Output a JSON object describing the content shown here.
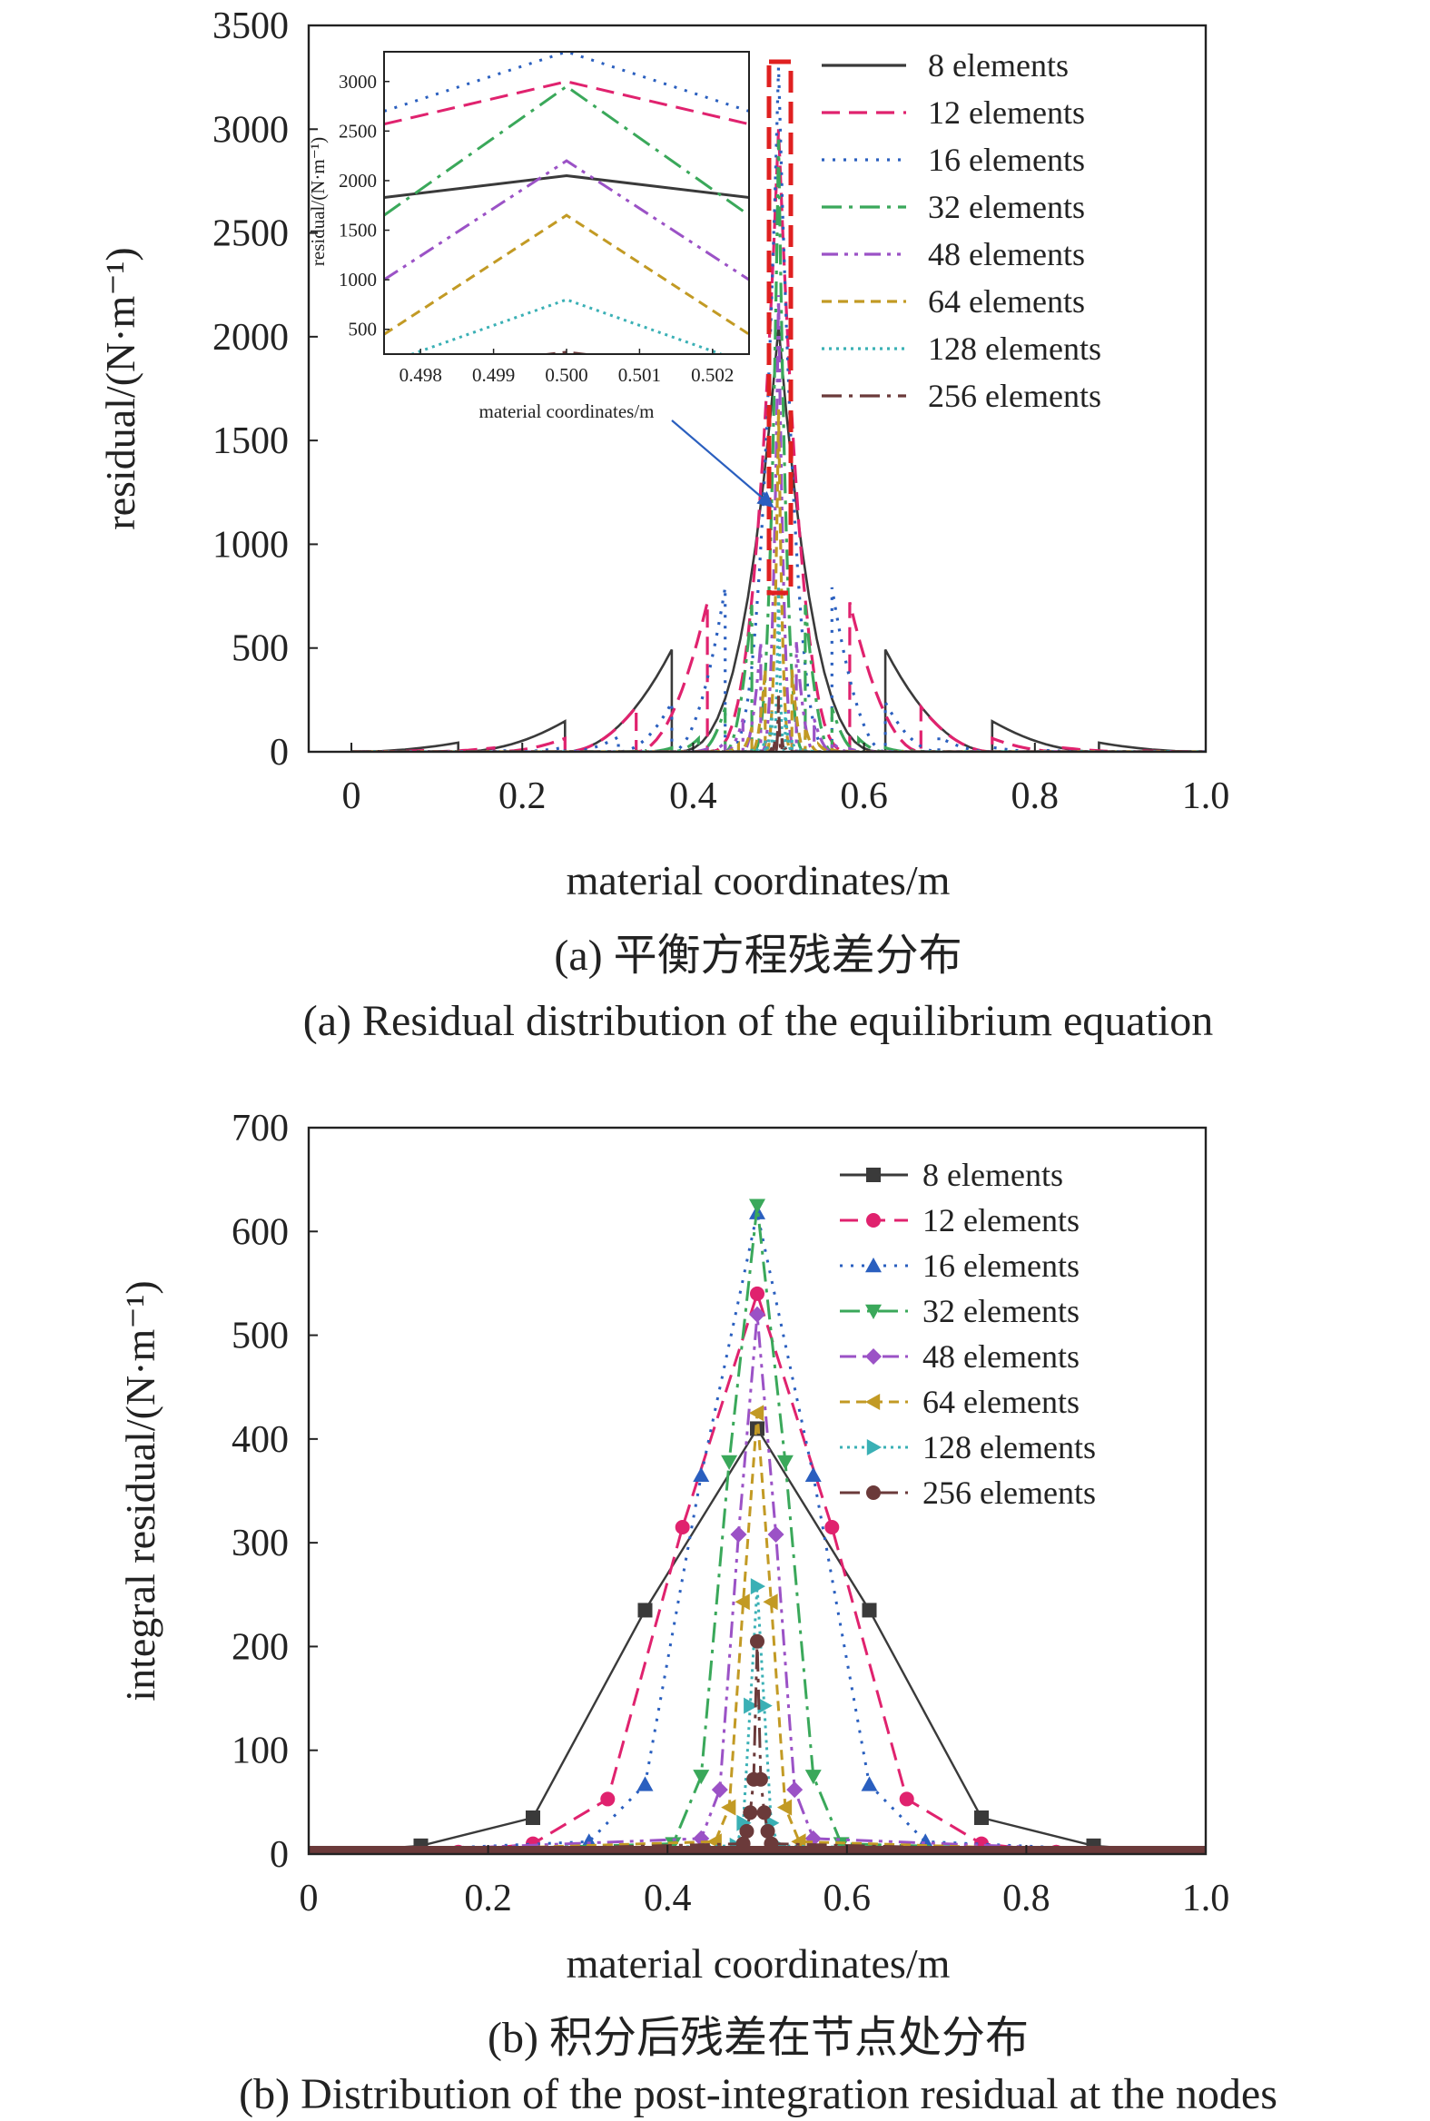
{
  "chart_data": [
    {
      "type": "line",
      "panel": "a",
      "xlabel": "material coordinates/m",
      "ylabel": "residual/(N·m⁻¹)",
      "caption_zh": "(a) 平衡方程残差分布",
      "caption_en": "(a) Residual distribution of the equilibrium equation",
      "xlim": [
        -0.05,
        1.0
      ],
      "ylim": [
        0,
        3500
      ],
      "xticks": [
        "0",
        "0.2",
        "0.4",
        "0.6",
        "0.8",
        "1.0"
      ],
      "xtick_values": [
        0,
        0.2,
        0.4,
        0.6,
        0.8,
        1.0
      ],
      "yticks": [
        "0",
        "500",
        "1000",
        "1500",
        "2000",
        "2500",
        "3000",
        "3500"
      ],
      "ytick_values": [
        0,
        500,
        1000,
        1500,
        2000,
        2500,
        3000,
        3500
      ],
      "legend_position": "top-right",
      "series": [
        {
          "name": "8 elements",
          "color": "#3a3a3a",
          "dash": "solid",
          "elements": 8,
          "peak": 2050
        },
        {
          "name": "12 elements",
          "color": "#e0226e",
          "dash": "dashed",
          "elements": 12,
          "peak": 3000
        },
        {
          "name": "16 elements",
          "color": "#2a5fbf",
          "dash": "dotted",
          "elements": 16,
          "peak": 3300
        },
        {
          "name": "32 elements",
          "color": "#3aa85a",
          "dash": "dashdot",
          "elements": 32,
          "peak": 2950
        },
        {
          "name": "48 elements",
          "color": "#9b52c6",
          "dash": "dashdotdot",
          "elements": 48,
          "peak": 2200
        },
        {
          "name": "64 elements",
          "color": "#c29a24",
          "dash": "shortdash",
          "elements": 64,
          "peak": 1650
        },
        {
          "name": "128 elements",
          "color": "#3ab0b5",
          "dash": "dense-dotted",
          "elements": 128,
          "peak": 800
        },
        {
          "name": "256 elements",
          "color": "#6b3a3a",
          "dash": "dashdot",
          "elements": 256,
          "peak": 270
        }
      ],
      "inset": {
        "xlabel": "material coordinates/m",
        "ylabel": "residual/(N·m⁻¹)",
        "xlim": [
          0.4975,
          0.5025
        ],
        "ylim": [
          250,
          3300
        ],
        "xticks": [
          "0.498",
          "0.499",
          "0.500",
          "0.501",
          "0.502"
        ],
        "xtick_values": [
          0.498,
          0.499,
          0.5,
          0.501,
          0.502
        ],
        "yticks": [
          "500",
          "1000",
          "1500",
          "2000",
          "2500",
          "3000"
        ],
        "ytick_values": [
          500,
          1000,
          1500,
          2000,
          2500,
          3000
        ],
        "series": [
          {
            "name": "8 elements",
            "peak": 2050,
            "edge": 1830
          },
          {
            "name": "12 elements",
            "peak": 3000,
            "edge": 2570
          },
          {
            "name": "16 elements",
            "peak": 3300,
            "edge": 2700
          },
          {
            "name": "32 elements",
            "peak": 2950,
            "edge": 1650
          },
          {
            "name": "48 elements",
            "peak": 2200,
            "edge": 1000
          },
          {
            "name": "64 elements",
            "peak": 1650,
            "edge": 450
          },
          {
            "name": "128 elements",
            "peak": 800,
            "edge": 150
          },
          {
            "name": "256 elements",
            "peak": 270,
            "edge": 50
          }
        ]
      }
    },
    {
      "type": "line",
      "panel": "b",
      "xlabel": "material coordinates/m",
      "ylabel": "integral residual/(N·m⁻¹)",
      "caption_zh": "(b) 积分后残差在节点处分布",
      "caption_en": "(b) Distribution of the post-integration residual at the nodes",
      "xlim": [
        0,
        1.0
      ],
      "ylim": [
        0,
        700
      ],
      "xticks": [
        "0",
        "0.2",
        "0.4",
        "0.6",
        "0.8",
        "1.0"
      ],
      "xtick_values": [
        0,
        0.2,
        0.4,
        0.6,
        0.8,
        1.0
      ],
      "yticks": [
        "0",
        "100",
        "200",
        "300",
        "400",
        "500",
        "600",
        "700"
      ],
      "ytick_values": [
        0,
        100,
        200,
        300,
        400,
        500,
        600,
        700
      ],
      "legend_position": "top-right",
      "series": [
        {
          "name": "8 elements",
          "color": "#3a3a3a",
          "dash": "solid",
          "marker": "square",
          "elements": 8,
          "x": [
            0.0,
            0.125,
            0.25,
            0.375,
            0.5,
            0.625,
            0.75,
            0.875,
            1.0
          ],
          "y": [
            0,
            8,
            35,
            235,
            410,
            235,
            35,
            8,
            0
          ]
        },
        {
          "name": "12 elements",
          "color": "#e0226e",
          "dash": "dashed",
          "marker": "circle",
          "elements": 12,
          "x": [
            0.0,
            0.0833,
            0.1667,
            0.25,
            0.3333,
            0.4167,
            0.5,
            0.5833,
            0.6667,
            0.75,
            0.8333,
            0.9167,
            1.0
          ],
          "y": [
            0,
            0,
            2,
            10,
            53,
            315,
            540,
            315,
            53,
            10,
            2,
            0,
            0
          ]
        },
        {
          "name": "16 elements",
          "color": "#2a5fbf",
          "dash": "dotted",
          "marker": "triangle-up",
          "elements": 16,
          "x": [
            0.3125,
            0.375,
            0.4375,
            0.5,
            0.5625,
            0.625,
            0.6875
          ],
          "y": [
            12,
            67,
            365,
            618,
            365,
            67,
            12
          ]
        },
        {
          "name": "32 elements",
          "color": "#3aa85a",
          "dash": "dashdot",
          "marker": "triangle-down",
          "elements": 32,
          "x": [
            0.40625,
            0.4375,
            0.46875,
            0.5,
            0.53125,
            0.5625,
            0.59375
          ],
          "y": [
            10,
            75,
            378,
            625,
            378,
            75,
            10
          ]
        },
        {
          "name": "48 elements",
          "color": "#9b52c6",
          "dash": "dashdotdot",
          "marker": "diamond",
          "elements": 48,
          "x": [
            0.4375,
            0.4583,
            0.4792,
            0.5,
            0.5208,
            0.5417,
            0.5625
          ],
          "y": [
            15,
            62,
            308,
            520,
            308,
            62,
            15
          ]
        },
        {
          "name": "64 elements",
          "color": "#c29a24",
          "dash": "shortdash",
          "marker": "triangle-left",
          "elements": 64,
          "x": [
            0.4531,
            0.4688,
            0.4844,
            0.5,
            0.5156,
            0.5313,
            0.5469
          ],
          "y": [
            12,
            45,
            243,
            425,
            243,
            45,
            12
          ]
        },
        {
          "name": "128 elements",
          "color": "#3ab0b5",
          "dash": "dense-dotted",
          "marker": "triangle-right",
          "elements": 128,
          "x": [
            0.4766,
            0.4844,
            0.4922,
            0.5,
            0.5078,
            0.5156,
            0.5234
          ],
          "y": [
            8,
            30,
            143,
            258,
            143,
            30,
            8
          ]
        },
        {
          "name": "256 elements",
          "color": "#6b3a3a",
          "dash": "dashdot",
          "marker": "circle",
          "elements": 256,
          "x": [
            0.4844,
            0.4883,
            0.4922,
            0.4961,
            0.5,
            0.5039,
            0.5078,
            0.5117,
            0.5156
          ],
          "y": [
            10,
            22,
            40,
            72,
            205,
            72,
            40,
            22,
            10
          ]
        }
      ]
    }
  ]
}
